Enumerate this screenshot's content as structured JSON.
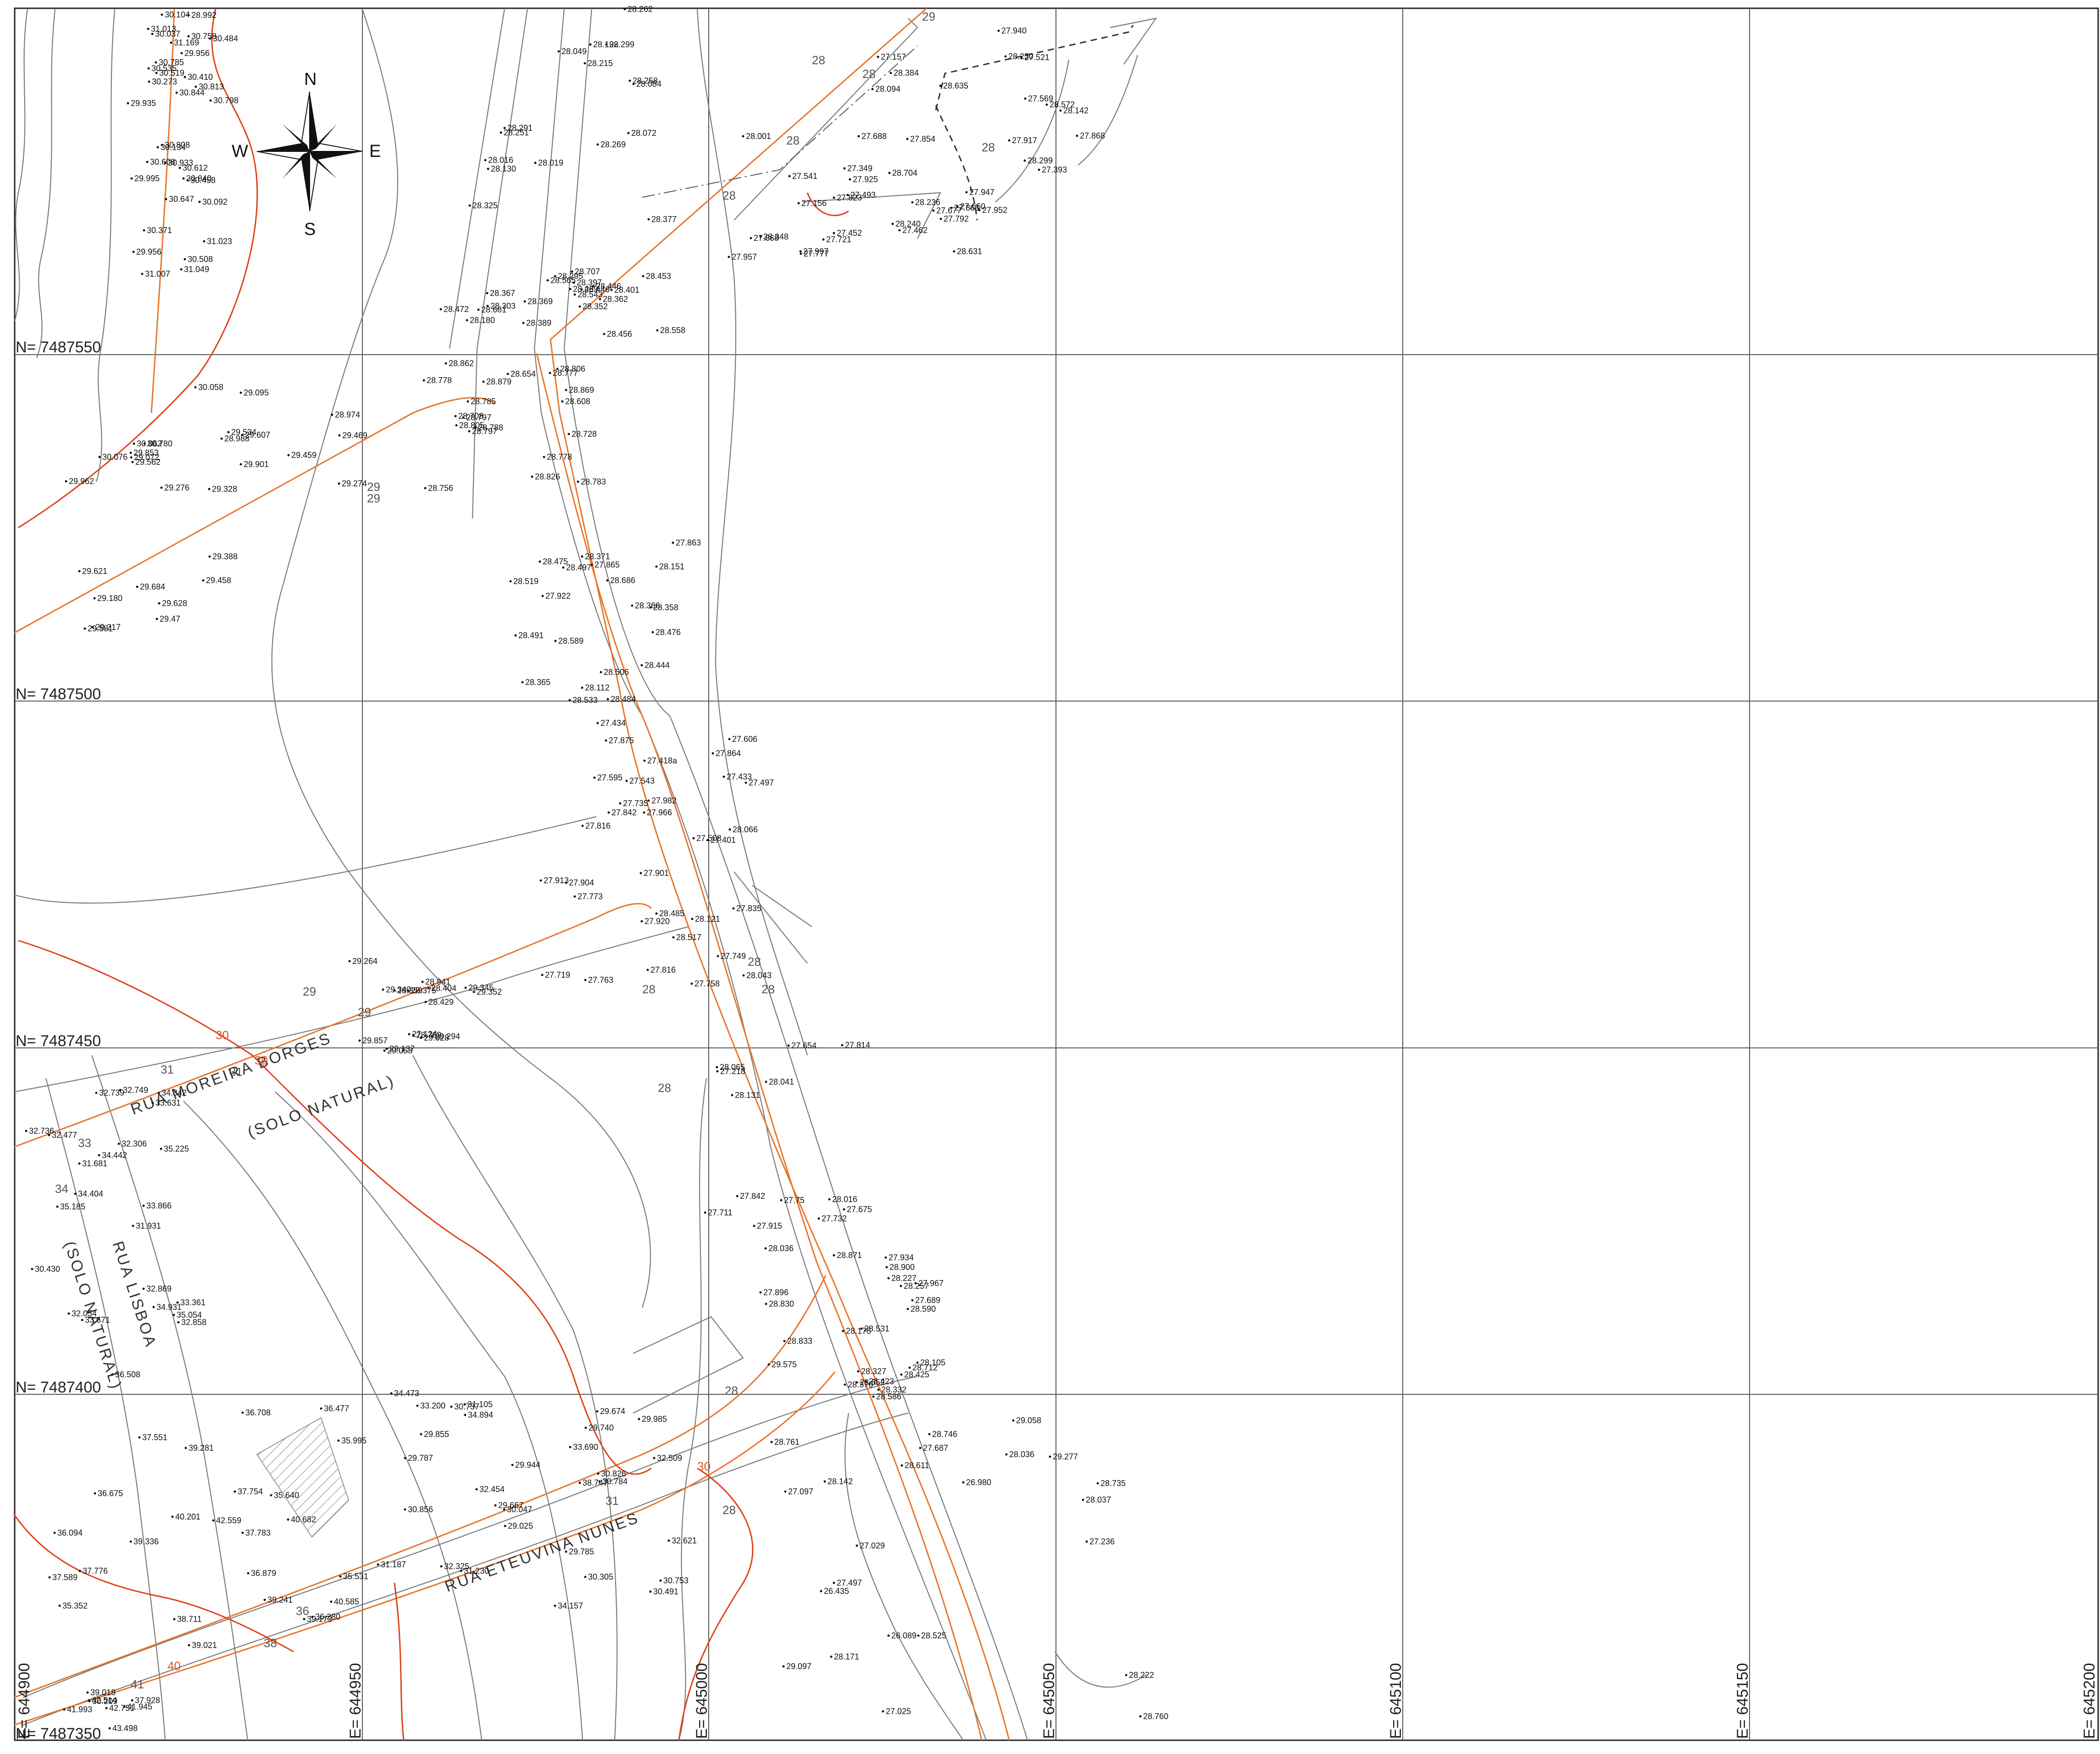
{
  "compass": {
    "n": "N",
    "s": "S",
    "e": "E",
    "w": "W"
  },
  "northings": [
    "N= 7487550",
    "N= 7487500",
    "N= 7487450",
    "N= 7487400",
    "N= 7487350"
  ],
  "eastings": [
    "E= 644900",
    "E= 644950",
    "E= 645000",
    "E= 645050",
    "E= 645100",
    "E= 645150",
    "E= 645200"
  ],
  "streets": {
    "moreira": "RUA MOREIRA BORGES",
    "solo1": "(SOLO NATURAL)",
    "lisboa": "RUA LISBOA",
    "solo2": "(SOLO NATURAL)",
    "teuvina": "RUA ETEUVINA NUNES"
  },
  "contour_values": [
    "28",
    "28",
    "28",
    "29",
    "29",
    "29",
    "29",
    "28",
    "28",
    "28",
    "30",
    "30",
    "31",
    "31",
    "33",
    "34",
    "36",
    "38",
    "40",
    "41",
    "29",
    "28",
    "28",
    "28",
    "28",
    "28",
    "31",
    "30"
  ],
  "spot_elevations": [
    "30.104",
    "30.519",
    "30.535",
    "28.992",
    "29.935",
    "30.410",
    "30.647",
    "30.608",
    "30.808",
    "30.798",
    "30.785",
    "30.813",
    "30.844",
    "30.840",
    "31.007",
    "31.049",
    "31.169",
    "31.023",
    "30.933",
    "31.013",
    "30.273",
    "30.134",
    "30.371",
    "30.612",
    "30.758",
    "30.458",
    "30.037",
    "30.092",
    "29.956",
    "29.956",
    "29.995",
    "30.508",
    "30.484",
    "28.299",
    "28.262",
    "28.215",
    "28.130",
    "28.072",
    "28.377",
    "28.269",
    "28.325",
    "28.291",
    "28.192",
    "28.258",
    "28.084",
    "28.019",
    "28.049",
    "28.016",
    "28.251",
    "27.947",
    "27.952",
    "27.940",
    "27.868",
    "28.094",
    "27.917",
    "28.704",
    "28.635",
    "28.572",
    "28.299",
    "28.250",
    "27.677",
    "27.393",
    "28.384",
    "27.569",
    "27.521",
    "27.863",
    "27.157",
    "28.142",
    "27.925",
    "27.792",
    "27.721",
    "28.001",
    "27.688",
    "27.660",
    "27.541",
    "27.777",
    "27.854",
    "27.823",
    "27.349",
    "27.868",
    "28.631",
    "27.452",
    "27.997",
    "28.348",
    "27.493",
    "27.462",
    "27.156",
    "27.957",
    "28.240",
    "28.236",
    "28.367",
    "28.295",
    "28.453",
    "28.707",
    "28.469",
    "28.472",
    "28.369",
    "28.661",
    "28.565",
    "28.558",
    "28.446",
    "28.543",
    "28.352",
    "28.389",
    "28.362",
    "28.456",
    "28.446",
    "28.180",
    "28.397",
    "28.401",
    "28.303",
    "28.826",
    "28.862",
    "28.879",
    "28.778",
    "28.756",
    "28.806",
    "28.805",
    "28.869",
    "28.728",
    "28.654",
    "28.608",
    "28.783",
    "28.708",
    "28.788",
    "28.797",
    "28.778",
    "28.777",
    "28.797",
    "28.785",
    "30.780",
    "30.062",
    "29.853",
    "30.058",
    "29.901",
    "29.962",
    "29.328",
    "29.607",
    "29.469",
    "29.459",
    "29.095",
    "29.562",
    "29.534",
    "29.274",
    "29.276",
    "29.072",
    "28.974",
    "28.988",
    "30.076",
    "29.458",
    "29.180",
    "29.628",
    "29.217",
    "29.47",
    "29.388",
    "29.581",
    "29.621",
    "29.684",
    "28.365",
    "28.491",
    "28.484",
    "28.533",
    "28.444",
    "28.506",
    "28.589",
    "28.686",
    "28.366",
    "28.475",
    "28.358",
    "28.371",
    "28.112",
    "28.476",
    "28.519",
    "28.497",
    "27.863",
    "28.151",
    "27.922",
    "27.865",
    "27.875",
    "27.966",
    "27.864",
    "27.982",
    "27.735",
    "27.842",
    "28.066",
    "27.595",
    "27.816",
    "27.606",
    "27.543",
    "27.508",
    "27.401",
    "27.434",
    "27.418a",
    "27.433",
    "27.497",
    "28.485",
    "27.901",
    "27.904",
    "27.920",
    "27.913",
    "27.835",
    "27.816",
    "27.758",
    "28.121",
    "28.043",
    "27.719",
    "27.749",
    "27.763",
    "27.773",
    "28.517",
    "28.404",
    "28.429",
    "28.375",
    "28.359",
    "28.762",
    "28.941",
    "29.352",
    "29.340",
    "29.137",
    "29.028",
    "29.053",
    "29.264",
    "29.294",
    "29.345",
    "29.857",
    "27.124",
    "28.131",
    "28.016",
    "27.915",
    "27.814",
    "27.75",
    "27.732",
    "27.711",
    "27.654",
    "27.675",
    "27.218",
    "27.842",
    "28.065",
    "28.041",
    "27.689",
    "27.934",
    "27.896",
    "27.967",
    "28.036",
    "28.105",
    "28.175",
    "28.227",
    "28.257",
    "29.575",
    "28.900",
    "28.833",
    "28.830",
    "28.871",
    "28.531",
    "28.590",
    "28.423",
    "28.376",
    "28.332",
    "28.425",
    "28.327",
    "28.586",
    "28.712",
    "28.652",
    "32.477",
    "32.736",
    "32.306",
    "32.869",
    "32.749",
    "31.681",
    "31.931",
    "32.858",
    "33.361",
    "32.054",
    "32.739",
    "33.631",
    "34.342",
    "33.671",
    "35.185",
    "33.866",
    "30.430",
    "34.442",
    "34.404",
    "34.931",
    "35.054",
    "35.225",
    "35.352",
    "35.531",
    "35.640",
    "36.094",
    "36.280",
    "37.928",
    "37.776",
    "37.589",
    "40.682",
    "37.754",
    "36.879",
    "36.708",
    "36.477",
    "36.508",
    "36.675",
    "37.551",
    "35.995",
    "37.783",
    "39.018",
    "39.336",
    "39.021",
    "39.241",
    "39.281",
    "40.585",
    "38.711",
    "39.173",
    "40.201",
    "42.559",
    "41.945",
    "41.993",
    "42.514",
    "42.751",
    "43.498",
    "30.209",
    "29.740",
    "29.787",
    "30.753",
    "30.737",
    "30.491",
    "30.856",
    "30.784",
    "31.105",
    "30.047",
    "29.667",
    "29.674",
    "29.855",
    "29.785",
    "29.944",
    "30.305",
    "30.826",
    "29.985",
    "31.230",
    "31.187",
    "32.325",
    "32.454",
    "32.509",
    "32.621",
    "33.200",
    "33.690",
    "34.894",
    "34.473",
    "34.157",
    "38.747",
    "29.025",
    "29.097",
    "27.025",
    "26.980",
    "28.746",
    "29.058",
    "29.277",
    "28.761",
    "28.760",
    "28.525",
    "28.142",
    "28.036",
    "28.037",
    "28.171",
    "28.222",
    "28.611",
    "27.687",
    "27.029",
    "26.089",
    "27.497",
    "28.735",
    "27.097",
    "27.236",
    "26.435"
  ]
}
